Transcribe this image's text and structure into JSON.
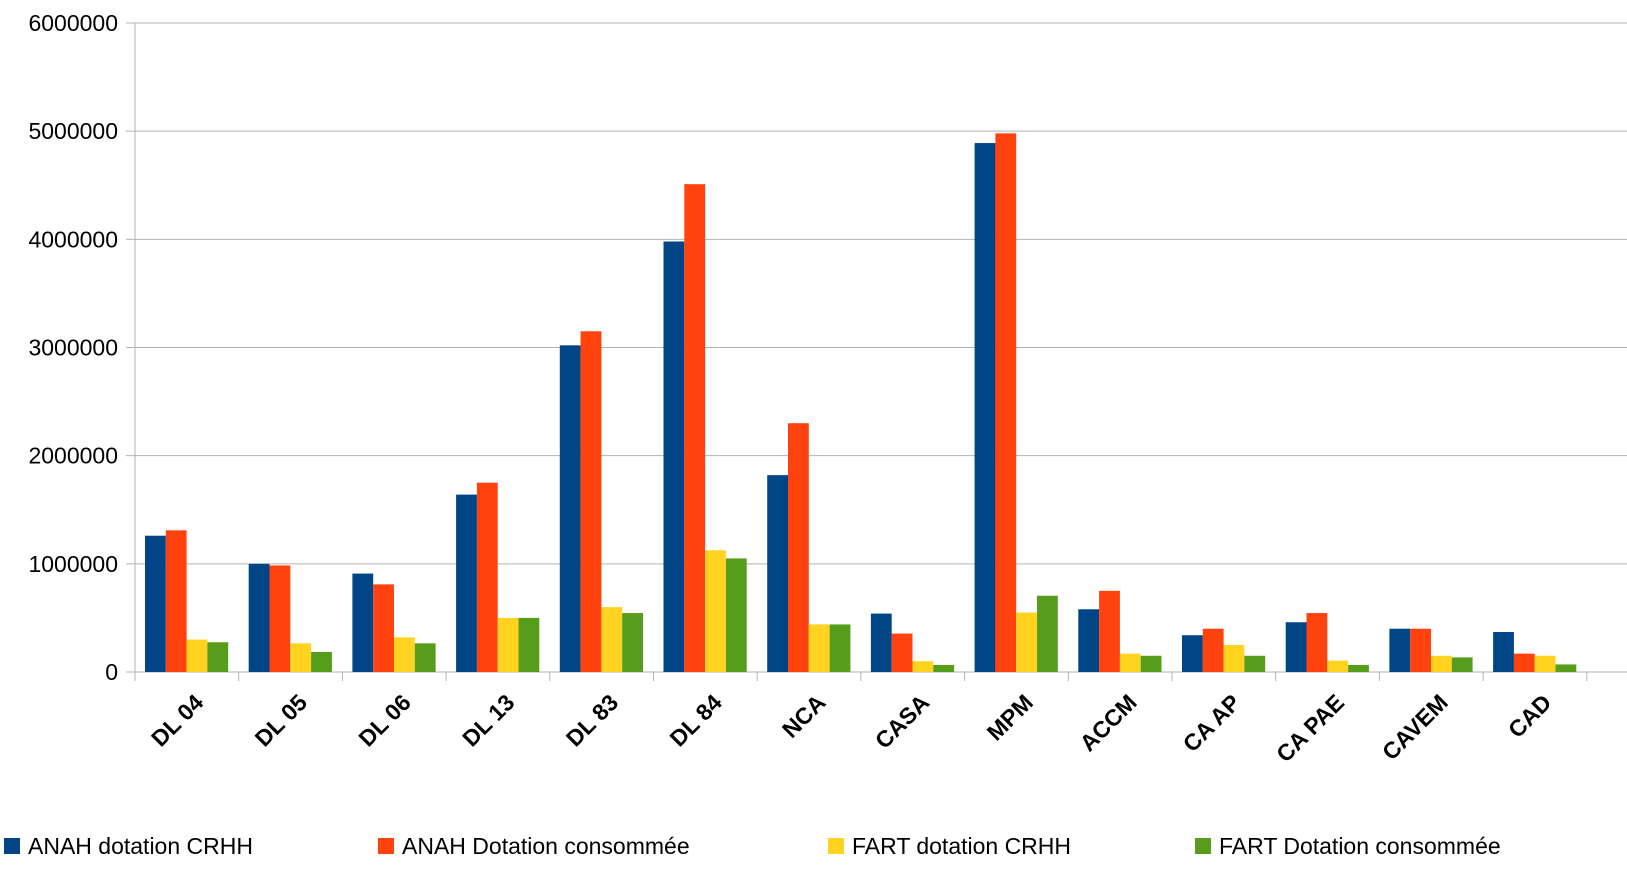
{
  "chart_data": {
    "type": "bar",
    "title": "",
    "xlabel": "",
    "ylabel": "",
    "ylim": [
      0,
      6000000
    ],
    "yticks": [
      "0",
      "1000000",
      "2000000",
      "3000000",
      "4000000",
      "5000000",
      "6000000"
    ],
    "grid": true,
    "legend_position": "bottom",
    "categories": [
      "DL 04",
      "DL 05",
      "DL 06",
      "DL 13",
      "DL 83",
      "DL 84",
      "NCA",
      "CASA",
      "MPM",
      "ACCM",
      "CA AP",
      "CA PAE",
      "CAVEM",
      "CAD"
    ],
    "series": [
      {
        "name": "ANAH dotation CRHH",
        "color": "#004586",
        "values": [
          1260000,
          1000000,
          910000,
          1640000,
          3020000,
          3980000,
          1820000,
          540000,
          4890000,
          580000,
          340000,
          460000,
          400000,
          370000
        ]
      },
      {
        "name": "ANAH Dotation consommée",
        "color": "#ff420e",
        "values": [
          1310000,
          985000,
          810000,
          1750000,
          3150000,
          4510000,
          2300000,
          355000,
          4980000,
          750000,
          400000,
          545000,
          400000,
          170000
        ]
      },
      {
        "name": "FART dotation CRHH",
        "color": "#ffd320",
        "values": [
          300000,
          265000,
          320000,
          500000,
          600000,
          1125000,
          440000,
          100000,
          550000,
          170000,
          250000,
          105000,
          150000,
          150000
        ]
      },
      {
        "name": "FART Dotation consommée",
        "color": "#579d1c",
        "values": [
          275000,
          185000,
          265000,
          500000,
          545000,
          1050000,
          440000,
          65000,
          705000,
          150000,
          150000,
          65000,
          135000,
          70000
        ]
      }
    ]
  }
}
